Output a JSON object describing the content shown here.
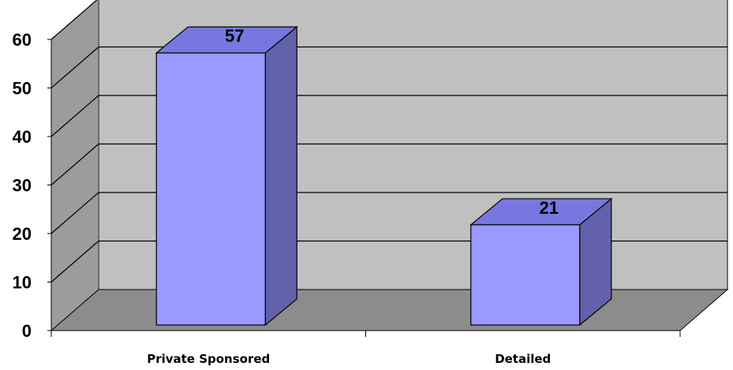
{
  "chart_data": {
    "type": "bar",
    "title": "",
    "xlabel": "",
    "ylabel": "",
    "categories": [
      "Private Sponsored",
      "Detailed"
    ],
    "values": [
      57,
      21
    ],
    "data_labels": [
      "57",
      "21"
    ],
    "ylim": [
      0,
      60
    ],
    "yticks": [
      0,
      10,
      20,
      30,
      40,
      50,
      60
    ],
    "ytick_labels": [
      "0",
      "10",
      "20",
      "30",
      "40",
      "50",
      "60"
    ],
    "grid": true,
    "legend": "none",
    "style": "3d-column",
    "colors": {
      "bar_front": "#9999ff",
      "bar_top": "#7777e0",
      "bar_side": "#6262aa",
      "back_wall": "#c0c0c0",
      "side_wall": "#9c9c9c",
      "floor": "#8c8c8c",
      "gridline": "#000000"
    }
  }
}
